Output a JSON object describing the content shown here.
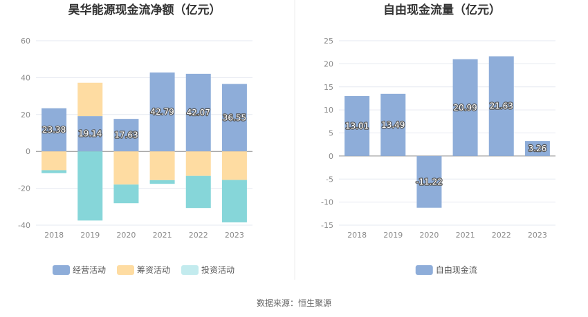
{
  "source_note": "数据来源：恒生聚源",
  "chart_data": [
    {
      "type": "bar",
      "title": "昊华能源现金流净额（亿元）",
      "categories": [
        "2018",
        "2019",
        "2020",
        "2021",
        "2022",
        "2023"
      ],
      "stacked": true,
      "ylim": [
        -40,
        60
      ],
      "yticks": [
        -40,
        -20,
        0,
        20,
        40,
        60
      ],
      "grid": true,
      "legend_position": "bottom",
      "series": [
        {
          "name": "经营活动",
          "color": "#8eadd9",
          "values": [
            23.38,
            19.14,
            17.63,
            42.79,
            42.07,
            36.55
          ],
          "labels": [
            "23.38",
            "19.14",
            "17.63",
            "42.79",
            "42.07",
            "36.55"
          ]
        },
        {
          "name": "筹资活动",
          "color": "#fedca2",
          "values": [
            -10.2,
            18.1,
            -18.0,
            -15.6,
            -13.3,
            -15.5
          ]
        },
        {
          "name": "投资活动",
          "color": "#86d6d9",
          "legend_color": "#c3ebee",
          "values": [
            -1.6,
            -37.5,
            -10.1,
            -2.0,
            -17.4,
            -23.0
          ]
        }
      ]
    },
    {
      "type": "bar",
      "title": "自由现金流量（亿元）",
      "categories": [
        "2018",
        "2019",
        "2020",
        "2021",
        "2022",
        "2023"
      ],
      "ylim": [
        -15,
        25
      ],
      "yticks": [
        -15,
        -10,
        -5,
        0,
        5,
        10,
        15,
        20,
        25
      ],
      "grid": true,
      "legend_position": "bottom",
      "series": [
        {
          "name": "自由现金流",
          "color": "#8eadd9",
          "values": [
            13.01,
            13.49,
            -11.22,
            20.99,
            21.63,
            3.26
          ],
          "labels": [
            "13.01",
            "13.49",
            "-11.22",
            "20.99",
            "21.63",
            "3.26"
          ]
        }
      ]
    }
  ]
}
